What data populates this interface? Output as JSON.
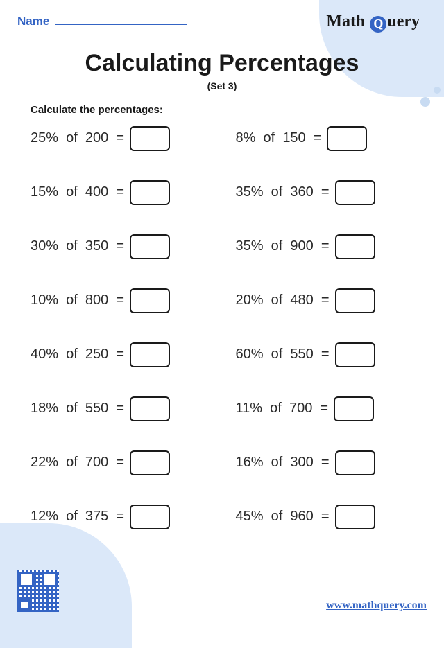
{
  "header": {
    "name_label": "Name",
    "logo_text_left": "Math",
    "logo_q": "Q",
    "logo_text_right": "uery"
  },
  "title": {
    "main": "Calculating Percentages",
    "sub": "(Set 3)"
  },
  "instruction": "Calculate the percentages:",
  "problems": [
    {
      "percent": "25%",
      "value": "200"
    },
    {
      "percent": "8%",
      "value": "150"
    },
    {
      "percent": "15%",
      "value": "400"
    },
    {
      "percent": "35%",
      "value": "360"
    },
    {
      "percent": "30%",
      "value": "350"
    },
    {
      "percent": "35%",
      "value": "900"
    },
    {
      "percent": "10%",
      "value": "800"
    },
    {
      "percent": "20%",
      "value": "480"
    },
    {
      "percent": "40%",
      "value": "250"
    },
    {
      "percent": "60%",
      "value": "550"
    },
    {
      "percent": "18%",
      "value": "550"
    },
    {
      "percent": "11%",
      "value": "700"
    },
    {
      "percent": "22%",
      "value": "700"
    },
    {
      "percent": "16%",
      "value": "300"
    },
    {
      "percent": "12%",
      "value": "375"
    },
    {
      "percent": "45%",
      "value": "960"
    }
  ],
  "labels": {
    "of": "of",
    "equals": "="
  },
  "footer": {
    "website": "www.mathquery.com"
  },
  "colors": {
    "accent": "#3464c4",
    "decoration": "#dbe8f9",
    "text": "#1a1a1a",
    "background": "#ffffff"
  }
}
